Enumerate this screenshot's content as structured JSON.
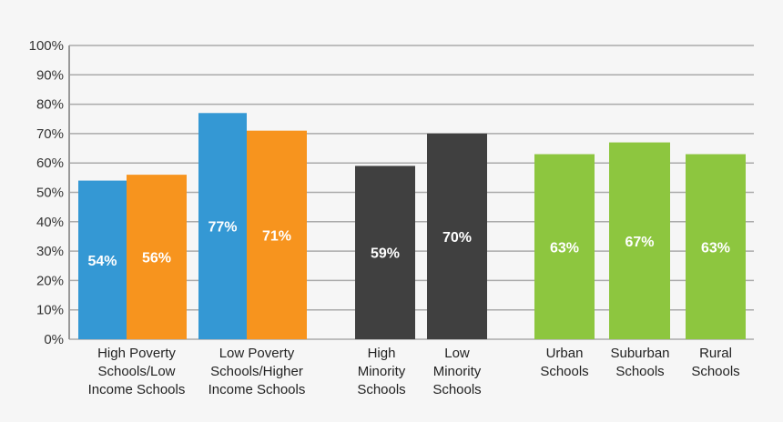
{
  "chart_data": {
    "type": "bar",
    "categories": [
      "High Poverty Schools/Low Income Schools",
      "Low Poverty Schools/Higher Income Schools",
      "High Minority Schools",
      "Low Minority Schools",
      "Urban Schools",
      "Suburban Schools",
      "Rural Schools"
    ],
    "category_label_lines": [
      [
        "High Poverty",
        "Schools/Low",
        "Income Schools"
      ],
      [
        "Low Poverty",
        "Schools/Higher",
        "Income Schools"
      ],
      [
        "High",
        "Minority",
        "Schools"
      ],
      [
        "Low",
        "Minority",
        "Schools"
      ],
      [
        "Urban",
        "Schools"
      ],
      [
        "Suburban",
        "Schools"
      ],
      [
        "Rural",
        "Schools"
      ]
    ],
    "bars": [
      {
        "group": 0,
        "value": 54,
        "label": "54%",
        "color": "#3498d4"
      },
      {
        "group": 0,
        "value": 56,
        "label": "56%",
        "color": "#f7941e"
      },
      {
        "group": 1,
        "value": 77,
        "label": "77%",
        "color": "#3498d4"
      },
      {
        "group": 1,
        "value": 71,
        "label": "71%",
        "color": "#f7941e"
      },
      {
        "group": 2,
        "value": 59,
        "label": "59%",
        "color": "#404040"
      },
      {
        "group": 3,
        "value": 70,
        "label": "70%",
        "color": "#404040"
      },
      {
        "group": 4,
        "value": 63,
        "label": "63%",
        "color": "#8dc63f"
      },
      {
        "group": 5,
        "value": 67,
        "label": "67%",
        "color": "#8dc63f"
      },
      {
        "group": 6,
        "value": 63,
        "label": "63%",
        "color": "#8dc63f"
      }
    ],
    "yticks": [
      "0%",
      "10%",
      "20%",
      "30%",
      "40%",
      "50%",
      "60%",
      "70%",
      "80%",
      "90%",
      "100%"
    ],
    "ylim": [
      0,
      100
    ],
    "grid": true,
    "title": "",
    "xlabel": "",
    "ylabel": ""
  }
}
